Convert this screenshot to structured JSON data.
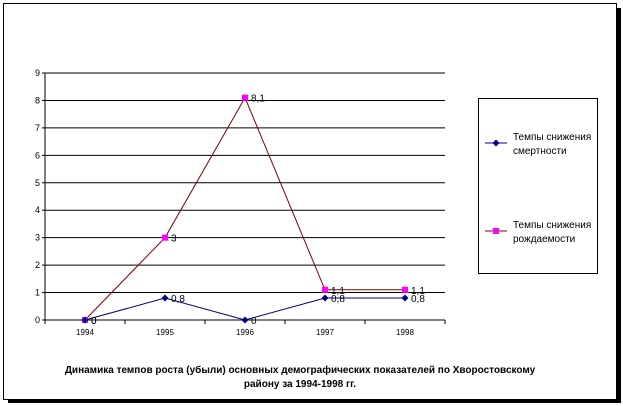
{
  "chart_data": {
    "type": "line",
    "categories": [
      "1994",
      "1995",
      "1996",
      "1997",
      "1998"
    ],
    "ylim": [
      0,
      9
    ],
    "yticks": [
      "0",
      "1",
      "2",
      "3",
      "4",
      "5",
      "6",
      "7",
      "8",
      "9"
    ],
    "grid": true,
    "legend_position": "right",
    "series": [
      {
        "name": "Темпы снижения смертности",
        "color": "#000080",
        "marker": "diamond",
        "values": [
          0,
          0.8,
          0,
          0.8,
          0.8
        ],
        "labels": [
          "0",
          "0,8",
          "0",
          "0,8",
          "0,8"
        ]
      },
      {
        "name": "Темпы снижения рождаемости",
        "color": "#ff00ff",
        "line_color": "#800000",
        "marker": "square",
        "values": [
          0,
          3,
          8.1,
          1.1,
          1.1
        ],
        "labels": [
          "0",
          "3",
          "8,1",
          "1,1",
          "1,1"
        ]
      }
    ],
    "caption": "Динамика темпов роста (убыли) основных демографических показателей по Хворостовскому району за 1994-1998 гг."
  }
}
